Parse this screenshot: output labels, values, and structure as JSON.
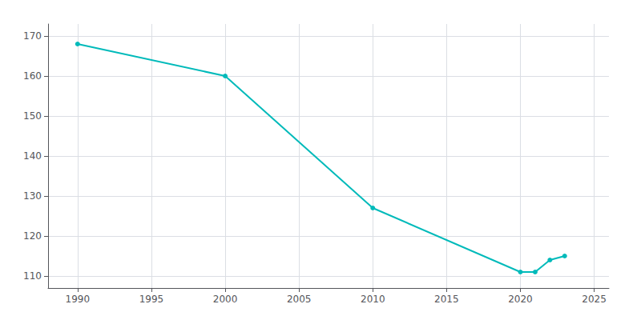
{
  "chart_data": {
    "type": "line",
    "x": [
      1990,
      2000,
      2010,
      2020,
      2021,
      2022,
      2023
    ],
    "values": [
      168,
      160,
      127,
      111,
      111,
      114,
      115
    ],
    "color": "#00BABA",
    "marker": "circle",
    "xlim": [
      1988,
      2026
    ],
    "xticks": [
      1990,
      1995,
      2000,
      2005,
      2010,
      2015,
      2020,
      2025
    ],
    "ylim": [
      107,
      173
    ],
    "yticks": [
      110,
      120,
      130,
      140,
      150,
      160,
      170
    ],
    "grid": true
  }
}
